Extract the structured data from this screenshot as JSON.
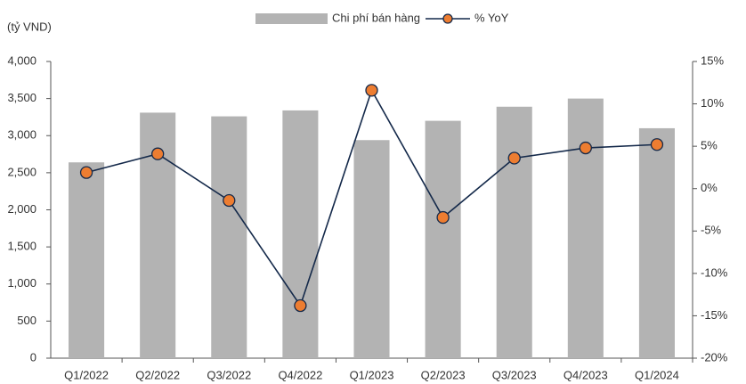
{
  "chart_data": {
    "type": "bar",
    "y_label": "(tỷ VND)",
    "categories": [
      "Q1/2022",
      "Q2/2022",
      "Q3/2022",
      "Q4/2022",
      "Q1/2023",
      "Q2/2023",
      "Q3/2023",
      "Q4/2023",
      "Q1/2024"
    ],
    "series": [
      {
        "name": "Chi phí bán hàng",
        "type": "bar",
        "color": "#b3b3b3",
        "values": [
          2640,
          3310,
          3260,
          3340,
          2940,
          3200,
          3390,
          3500,
          3100
        ]
      },
      {
        "name": "% YoY",
        "type": "line",
        "axis": "y2",
        "color": "#14294a",
        "marker_color": "#ed7d31",
        "values": [
          1.9,
          4.1,
          -1.4,
          -13.8,
          11.6,
          -3.4,
          3.6,
          4.8,
          5.2
        ]
      }
    ],
    "ylim": [
      0,
      4000
    ],
    "yticks": [
      0,
      500,
      {
        "value": 1000,
        "label": "1,000"
      },
      {
        "value": 1500,
        "label": "1,500"
      },
      {
        "value": 2000,
        "label": "2,000"
      },
      {
        "value": 2500,
        "label": "2,500"
      },
      {
        "value": 3000,
        "label": "3,000"
      },
      {
        "value": 3500,
        "label": "3,500"
      },
      {
        "value": 4000,
        "label": "4,000"
      }
    ],
    "y2lim": [
      -20,
      15
    ],
    "y2ticks": [
      {
        "value": -20,
        "label": "-20%"
      },
      {
        "value": -15,
        "label": "-15%"
      },
      {
        "value": -10,
        "label": "-10%"
      },
      {
        "value": -5,
        "label": "-5%"
      },
      {
        "value": 0,
        "label": "0%"
      },
      {
        "value": 5,
        "label": "5%"
      },
      {
        "value": 10,
        "label": "10%"
      },
      {
        "value": 15,
        "label": "15%"
      }
    ],
    "grid": false,
    "legend": "top"
  }
}
